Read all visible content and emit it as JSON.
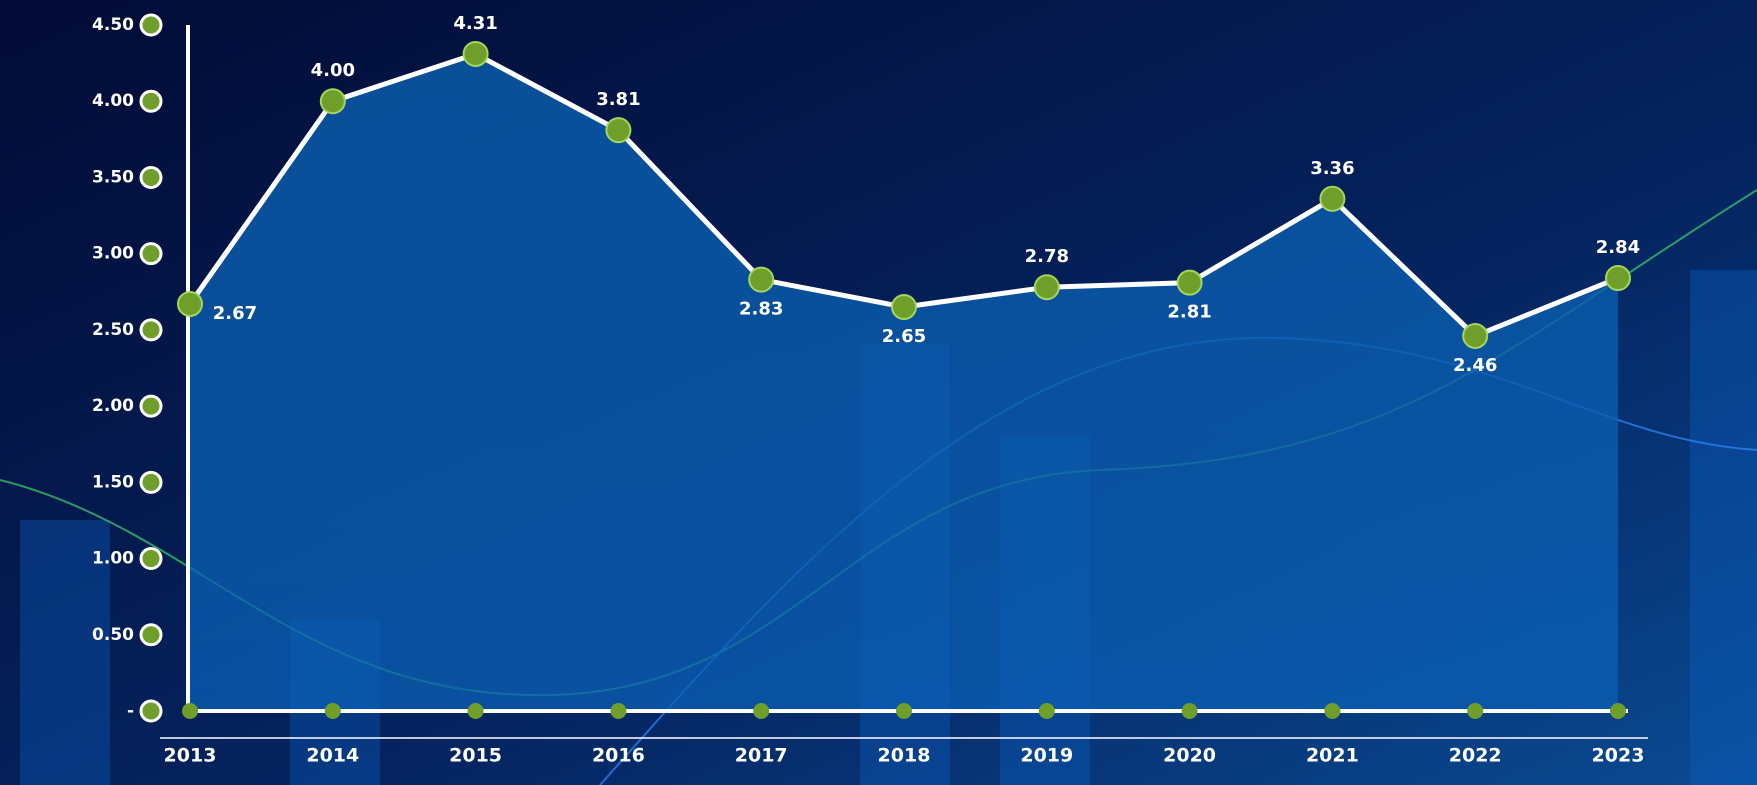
{
  "chart_data": {
    "type": "line",
    "categories": [
      "2013",
      "2014",
      "2015",
      "2016",
      "2017",
      "2018",
      "2019",
      "2020",
      "2021",
      "2022",
      "2023"
    ],
    "values": [
      2.67,
      4.0,
      4.31,
      3.81,
      2.83,
      2.65,
      2.78,
      2.81,
      3.36,
      2.46,
      2.84
    ],
    "value_labels": [
      "2.67",
      "4.00",
      "4.31",
      "3.81",
      "2.83",
      "2.65",
      "2.78",
      "2.81",
      "3.36",
      "2.46",
      "2.84"
    ],
    "color": "#ffffff",
    "marker_color": "#6f9e2a",
    "ylim": [
      0,
      4.5
    ],
    "yticks": [
      {
        "value": 0,
        "label": "-"
      },
      {
        "value": 0.5,
        "label": "0.50"
      },
      {
        "value": 1,
        "label": "1.00"
      },
      {
        "value": 1.5,
        "label": "1.50"
      },
      {
        "value": 2,
        "label": "2.00"
      },
      {
        "value": 2.5,
        "label": "2.50"
      },
      {
        "value": 3,
        "label": "3.00"
      },
      {
        "value": 3.5,
        "label": "3.50"
      },
      {
        "value": 4,
        "label": "4.00"
      },
      {
        "value": 4.5,
        "label": "4.50"
      }
    ]
  }
}
